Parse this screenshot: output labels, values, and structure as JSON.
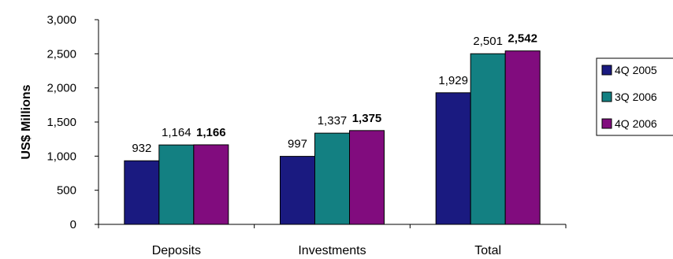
{
  "chart_data": {
    "type": "bar",
    "ylabel": "US$ Millions",
    "xlabel": "",
    "ylim": [
      0,
      3000
    ],
    "yticks": [
      0,
      500,
      1000,
      1500,
      2000,
      2500,
      3000
    ],
    "ytick_labels": [
      "0",
      "500",
      "1,000",
      "1,500",
      "2,000",
      "2,500",
      "3,000"
    ],
    "grid": false,
    "legend_position": "right",
    "categories": [
      "Deposits",
      "Investments",
      "Total"
    ],
    "series": [
      {
        "name": "4Q 2005",
        "color": "#1a1a80",
        "values": [
          932,
          997,
          1929
        ],
        "labels": [
          "932",
          "997",
          "1,929"
        ],
        "bold_labels": false
      },
      {
        "name": "3Q 2006",
        "color": "#138082",
        "values": [
          1164,
          1337,
          2501
        ],
        "labels": [
          "1,164",
          "1,337",
          "2,501"
        ],
        "bold_labels": false
      },
      {
        "name": "4Q 2006",
        "color": "#810c7e",
        "values": [
          1166,
          1375,
          2542
        ],
        "labels": [
          "1,166",
          "1,375",
          "2,542"
        ],
        "bold_labels": true
      }
    ]
  }
}
